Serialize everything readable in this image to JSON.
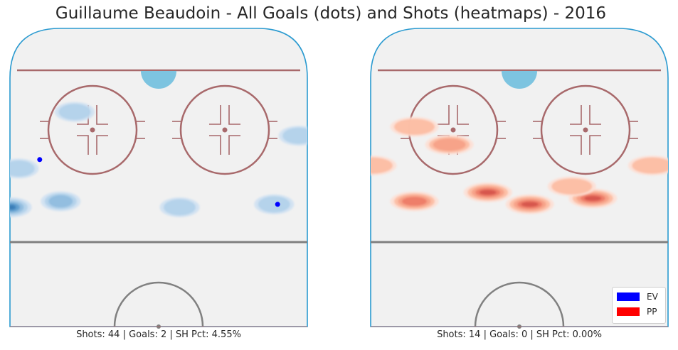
{
  "title": "Guillaume Beaudoin - All Goals (dots) and Shots (heatmaps) - 2016",
  "colors": {
    "ice": "#f1f1f1",
    "boards": "#2a9ad0",
    "goal_line": "#a8696b",
    "circle": "#a8696b",
    "blue_line": "#808080",
    "crease": "#7dc4e0",
    "ev": "#0000ff",
    "pp": "#ff0000"
  },
  "legend": [
    {
      "label": "EV",
      "color": "#0000ff"
    },
    {
      "label": "PP",
      "color": "#ff0000"
    }
  ],
  "chart_data": [
    {
      "type": "heatmap",
      "strength": "EV",
      "caption": "Shots: 44 | Goals: 2 | SH Pct: 4.55%",
      "colormap": "Blues",
      "shots": 44,
      "goals": 2,
      "sh_pct": "4.55%",
      "goal_points": [
        {
          "x": -34,
          "y": 56
        },
        {
          "x": 34,
          "y": 41
        }
      ],
      "density_peaks": [
        {
          "x": -42,
          "y": 40,
          "level": 5
        },
        {
          "x": -28,
          "y": 42,
          "level": 2
        },
        {
          "x": 6,
          "y": 40,
          "level": 1
        },
        {
          "x": 33,
          "y": 41,
          "level": 1
        },
        {
          "x": -40,
          "y": 53,
          "level": 1
        },
        {
          "x": -24,
          "y": 72,
          "level": 1
        },
        {
          "x": 40,
          "y": 64,
          "level": 1
        }
      ]
    },
    {
      "type": "heatmap",
      "strength": "PP",
      "caption": "Shots: 14 | Goals: 0 | SH Pct: 0.00%",
      "colormap": "Reds",
      "shots": 14,
      "goals": 0,
      "sh_pct": "0.00%",
      "goal_points": [],
      "density_peaks": [
        {
          "x": -30,
          "y": 42,
          "level": 3
        },
        {
          "x": -9,
          "y": 45,
          "level": 4
        },
        {
          "x": 3,
          "y": 41,
          "level": 4
        },
        {
          "x": 21,
          "y": 43,
          "level": 4
        },
        {
          "x": 15,
          "y": 47,
          "level": 1
        },
        {
          "x": -42,
          "y": 54,
          "level": 1
        },
        {
          "x": -20,
          "y": 61,
          "level": 2
        },
        {
          "x": -30,
          "y": 67,
          "level": 1
        },
        {
          "x": 38,
          "y": 54,
          "level": 1
        }
      ]
    }
  ]
}
